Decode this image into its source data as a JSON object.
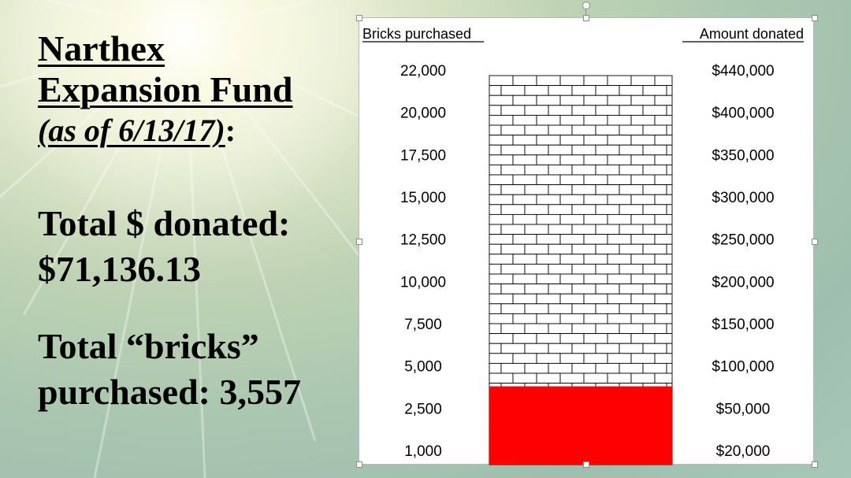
{
  "slide": {
    "title_line1": "Narthex",
    "title_line2": "Expansion Fund",
    "subtitle_date": "(as of 6/13/17)",
    "subtitle_colon": ":",
    "donated_label": "Total $ donated:",
    "donated_value": "$71,136.13",
    "bricks_label": "Total “bricks”",
    "bricks_value_line": "purchased: 3,557"
  },
  "chart_data": {
    "type": "bar",
    "left_axis_label": "Bricks purchased",
    "right_axis_label": "Amount donated",
    "left_ticks": [
      "22,000",
      "20,000",
      "17,500",
      "15,000",
      "12,500",
      "10,000",
      "7,500",
      "5,000",
      "2,500",
      "1,000"
    ],
    "right_ticks": [
      "$440,000",
      "$400,000",
      "$350,000",
      "$300,000",
      "$250,000",
      "$200,000",
      "$150,000",
      "$100,000",
      "$50,000",
      "$20,000"
    ],
    "bricks_purchased": 3557,
    "amount_donated": 71136.13,
    "fill_color": "#ff0000",
    "brick_outline_color": "#000000"
  }
}
